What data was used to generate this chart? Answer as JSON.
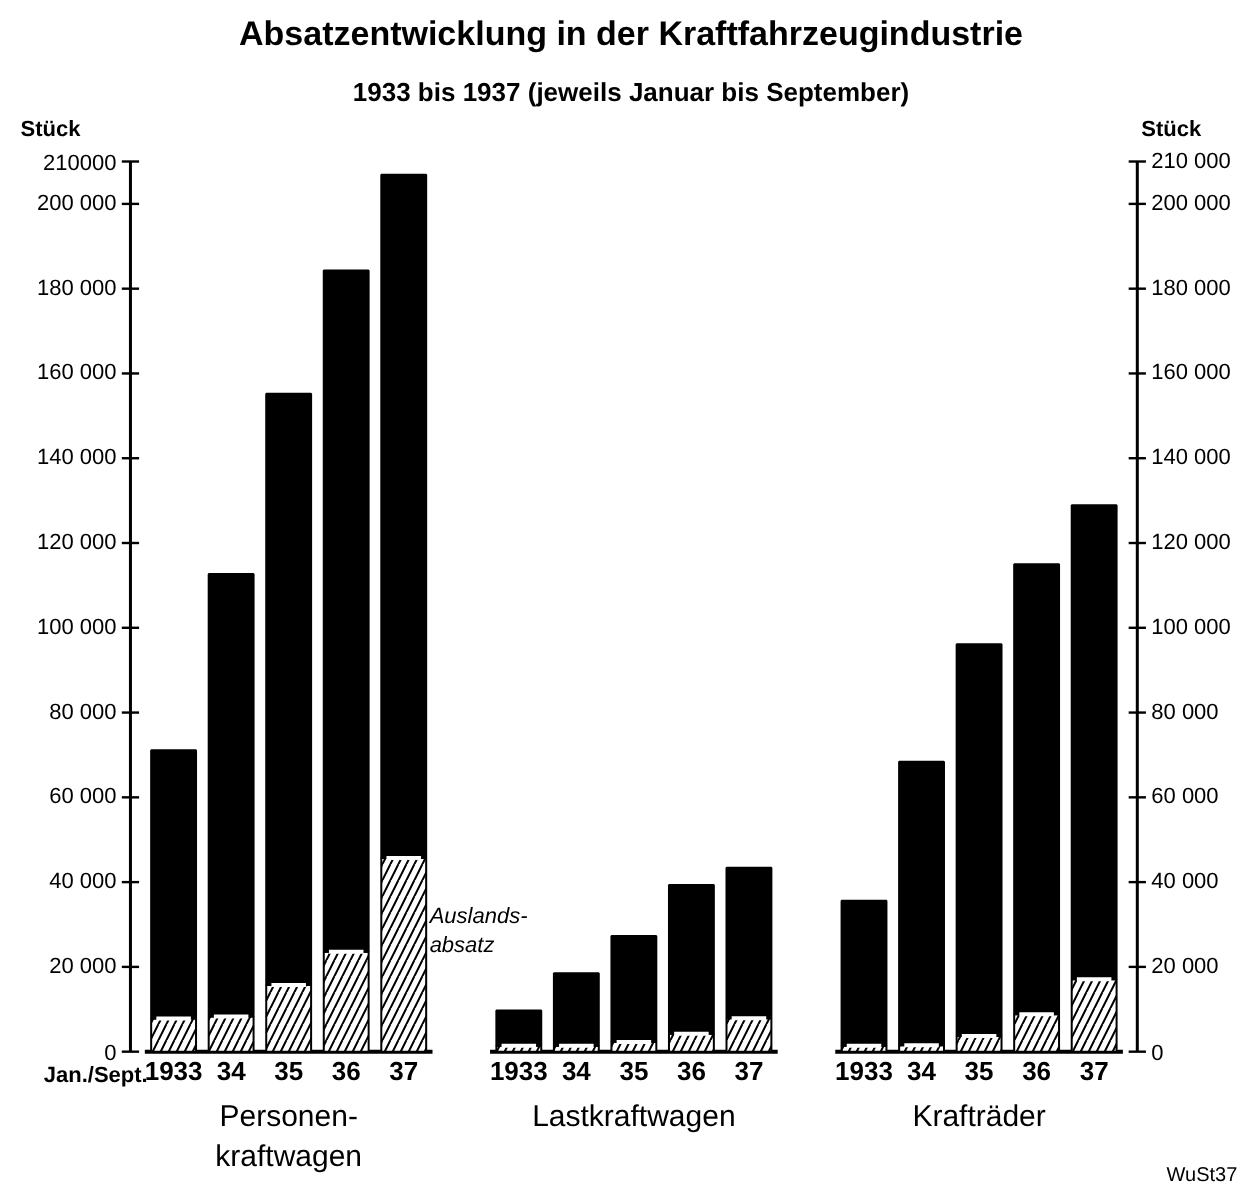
{
  "chart_data": {
    "type": "bar",
    "stacked": true,
    "title": "Absatzentwicklung in der Kraftfahrzeugindustrie",
    "subtitle": "1933 bis 1937 (jeweils Januar bis September)",
    "xlabel": "Jan./Sept.",
    "ylabel": "Stück",
    "y2label": "Stück",
    "categories": [
      "1933",
      "34",
      "35",
      "36",
      "37",
      null,
      "1933",
      "34",
      "35",
      "36",
      "37",
      null,
      "1933",
      "34",
      "35",
      "36",
      "37"
    ],
    "series": [
      {
        "name": "Auslands-\nabsatz",
        "color": "#000000",
        "values": [
          7800,
          8300,
          15700,
          23600,
          45700,
          null,
          1400,
          1400,
          2300,
          4200,
          7900,
          null,
          1400,
          1500,
          3700,
          8800,
          17100
        ]
      },
      {
        "color": "#000000",
        "values": [
          63300,
          104400,
          139500,
          160700,
          161200,
          null,
          8300,
          17100,
          25000,
          35100,
          35500,
          null,
          34200,
          66900,
          92400,
          106200,
          111800
        ]
      }
    ],
    "ylim": [
      0,
      210000
    ],
    "yticks": [
      0,
      {
        "value": 20000,
        "label": "20 000"
      },
      {
        "value": 40000,
        "label": "40 000"
      },
      {
        "value": 60000,
        "label": "60 000"
      },
      {
        "value": 80000,
        "label": "80 000"
      },
      {
        "value": 100000,
        "label": "100 000"
      },
      {
        "value": 120000,
        "label": "120 000"
      },
      {
        "value": 140000,
        "label": "140 000"
      },
      {
        "value": 160000,
        "label": "160 000"
      },
      {
        "value": 180000,
        "label": "180 000"
      },
      {
        "value": 200000,
        "label": "200 000"
      },
      {
        "value": 210000,
        "label": "210000"
      }
    ],
    "y2lim": [
      0,
      210000
    ],
    "y2ticks": [
      0,
      {
        "value": 20000,
        "label": "20 000"
      },
      {
        "value": 40000,
        "label": "40 000"
      },
      {
        "value": 60000,
        "label": "60 000"
      },
      {
        "value": 80000,
        "label": "80 000"
      },
      {
        "value": 100000,
        "label": "100 000"
      },
      {
        "value": 120000,
        "label": "120 000"
      },
      {
        "value": 140000,
        "label": "140 000"
      },
      {
        "value": 160000,
        "label": "160 000"
      },
      {
        "value": 180000,
        "label": "180 000"
      },
      {
        "value": 200000,
        "label": "200 000"
      },
      {
        "value": 210000,
        "label": "210 000"
      }
    ],
    "annotations": [
      "Personen-\nkraftwagen",
      "Lastkraftwagen",
      "Krafträder",
      "WuSt37"
    ]
  }
}
